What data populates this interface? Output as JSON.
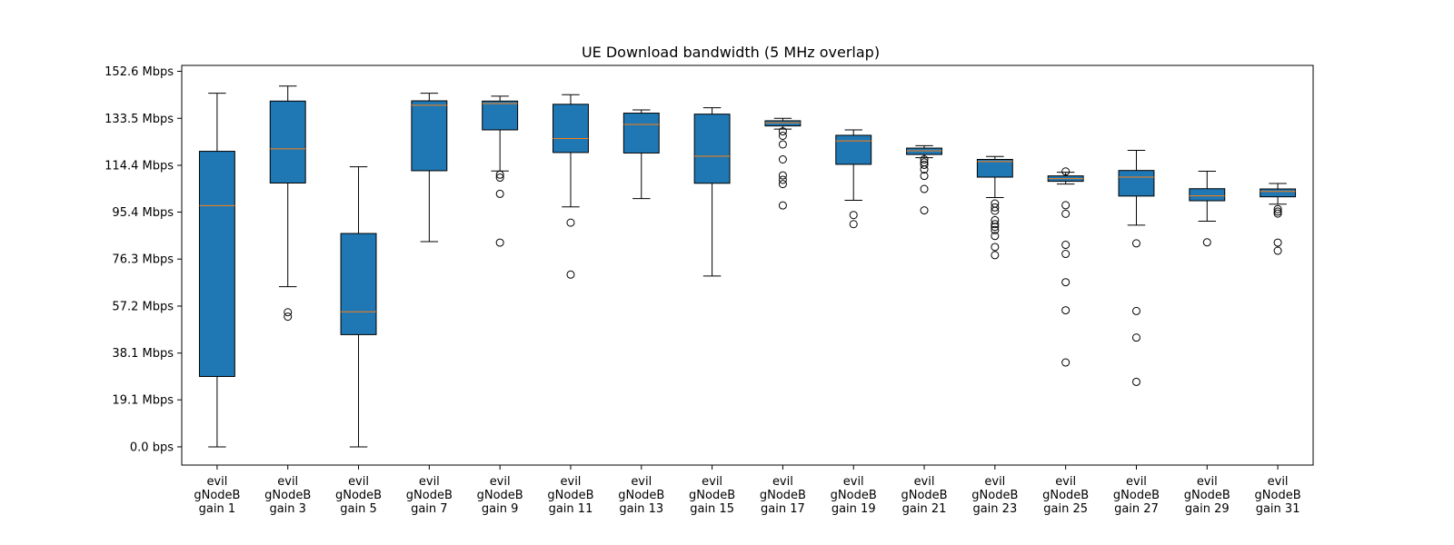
{
  "chart_data": {
    "type": "box",
    "title": "UE Download bandwidth (5 MHz overlap)",
    "xlabel": "",
    "ylabel": "",
    "ylim": [
      -7.4,
      155
    ],
    "grid": false,
    "y_ticks": [
      {
        "value": 0.0,
        "label": "0.0 bps"
      },
      {
        "value": 19.1,
        "label": "19.1 Mbps"
      },
      {
        "value": 38.1,
        "label": "38.1 Mbps"
      },
      {
        "value": 57.2,
        "label": "57.2 Mbps"
      },
      {
        "value": 76.3,
        "label": "76.3 Mbps"
      },
      {
        "value": 95.4,
        "label": "95.4 Mbps"
      },
      {
        "value": 114.4,
        "label": "114.4 Mbps"
      },
      {
        "value": 133.5,
        "label": "133.5 Mbps"
      },
      {
        "value": 152.6,
        "label": "152.6 Mbps"
      }
    ],
    "categories": [
      {
        "lines": [
          "evil",
          "gNodeB",
          "gain 1"
        ]
      },
      {
        "lines": [
          "evil",
          "gNodeB",
          "gain 3"
        ]
      },
      {
        "lines": [
          "evil",
          "gNodeB",
          "gain 5"
        ]
      },
      {
        "lines": [
          "evil",
          "gNodeB",
          "gain 7"
        ]
      },
      {
        "lines": [
          "evil",
          "gNodeB",
          "gain 9"
        ]
      },
      {
        "lines": [
          "evil",
          "gNodeB",
          "gain 11"
        ]
      },
      {
        "lines": [
          "evil",
          "gNodeB",
          "gain 13"
        ]
      },
      {
        "lines": [
          "evil",
          "gNodeB",
          "gain 15"
        ]
      },
      {
        "lines": [
          "evil",
          "gNodeB",
          "gain 17"
        ]
      },
      {
        "lines": [
          "evil",
          "gNodeB",
          "gain 19"
        ]
      },
      {
        "lines": [
          "evil",
          "gNodeB",
          "gain 21"
        ]
      },
      {
        "lines": [
          "evil",
          "gNodeB",
          "gain 23"
        ]
      },
      {
        "lines": [
          "evil",
          "gNodeB",
          "gain 25"
        ]
      },
      {
        "lines": [
          "evil",
          "gNodeB",
          "gain 27"
        ]
      },
      {
        "lines": [
          "evil",
          "gNodeB",
          "gain 29"
        ]
      },
      {
        "lines": [
          "evil",
          "gNodeB",
          "gain 31"
        ]
      }
    ],
    "boxes": [
      {
        "whislo": 0.0,
        "q1": 28.6,
        "med": 98.0,
        "q3": 120.1,
        "whishi": 143.7,
        "fliers": []
      },
      {
        "whislo": 65.1,
        "q1": 107.2,
        "med": 121.1,
        "q3": 140.5,
        "whishi": 146.6,
        "fliers": [
          54.7,
          52.9
        ]
      },
      {
        "whislo": 0.0,
        "q1": 45.6,
        "med": 54.9,
        "q3": 86.7,
        "whishi": 113.8,
        "fliers": []
      },
      {
        "whislo": 83.4,
        "q1": 112.2,
        "med": 138.8,
        "q3": 140.6,
        "whishi": 143.7,
        "fliers": []
      },
      {
        "whislo": 112.1,
        "q1": 128.8,
        "med": 139.5,
        "q3": 140.5,
        "whishi": 142.5,
        "fliers": [
          110.6,
          109.4,
          102.8,
          83.0
        ]
      },
      {
        "whislo": 97.5,
        "q1": 119.6,
        "med": 125.3,
        "q3": 139.2,
        "whishi": 143.1,
        "fliers": [
          91.1,
          70.0
        ]
      },
      {
        "whislo": 100.9,
        "q1": 119.4,
        "med": 131.0,
        "q3": 135.6,
        "whishi": 136.9,
        "fliers": []
      },
      {
        "whislo": 69.4,
        "q1": 107.1,
        "med": 118.1,
        "q3": 135.2,
        "whishi": 137.8,
        "fliers": []
      },
      {
        "whislo": 129.1,
        "q1": 130.4,
        "med": 131.7,
        "q3": 132.5,
        "whishi": 133.5,
        "fliers": [
          128.2,
          126.4,
          122.9,
          116.8,
          110.3,
          108.5,
          106.8,
          98.1
        ]
      },
      {
        "whislo": 100.2,
        "q1": 114.8,
        "med": 124.3,
        "q3": 126.6,
        "whishi": 128.8,
        "fliers": [
          94.2,
          90.5
        ]
      },
      {
        "whislo": 117.5,
        "q1": 118.8,
        "med": 120.3,
        "q3": 121.4,
        "whishi": 122.4,
        "fliers": [
          116.8,
          115.6,
          114.6,
          112.7,
          110.1,
          104.8,
          96.1
        ]
      },
      {
        "whislo": 101.3,
        "q1": 109.6,
        "med": 115.9,
        "q3": 116.8,
        "whishi": 118.0,
        "fliers": [
          98.9,
          97.3,
          95.9,
          92.1,
          90.5,
          89.4,
          88.1,
          85.7,
          81.2,
          77.9
        ]
      },
      {
        "whislo": 106.8,
        "q1": 107.9,
        "med": 109.0,
        "q3": 110.1,
        "whishi": 111.6,
        "fliers": [
          111.9,
          98.2,
          94.7,
          82.1,
          78.4,
          66.9,
          55.5,
          34.3
        ]
      },
      {
        "whislo": 90.1,
        "q1": 101.9,
        "med": 109.6,
        "q3": 112.3,
        "whishi": 120.5,
        "fliers": [
          82.7,
          55.2,
          44.4,
          26.4
        ]
      },
      {
        "whislo": 91.7,
        "q1": 100.0,
        "med": 102.0,
        "q3": 104.9,
        "whishi": 112.0,
        "fliers": [
          83.1
        ]
      },
      {
        "whislo": 98.6,
        "q1": 101.6,
        "med": 103.8,
        "q3": 104.8,
        "whishi": 107.0,
        "fliers": [
          96.6,
          95.6,
          94.8,
          83.0,
          79.7
        ]
      }
    ]
  }
}
